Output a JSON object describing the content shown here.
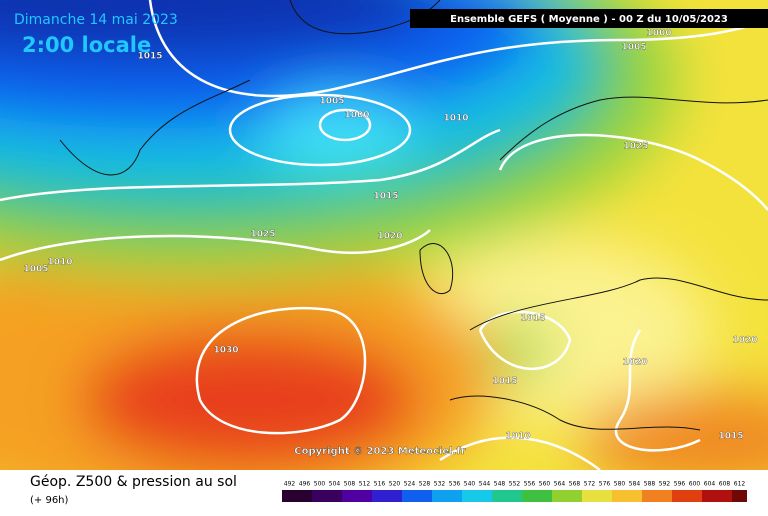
{
  "header": {
    "date": "Dimanche 14 mai 2023",
    "time": "2:00 locale",
    "model": "Ensemble GEFS  ( Moyenne )  - 00 Z du 10/05/2023"
  },
  "isobar_labels": [
    "1015",
    "1005",
    "1000",
    "1010",
    "1015",
    "1025",
    "1020",
    "1030",
    "1005",
    "1010",
    "1025",
    "1015",
    "1015",
    "1020",
    "1010",
    "1015",
    "1020",
    "1000",
    "1005"
  ],
  "copyright": "Copyright © 2023 Meteociel.fr",
  "footer": {
    "title": "Géop. Z500 & pression au sol",
    "lead": "(+ 96h)"
  },
  "colorbar": [
    "492",
    "496",
    "500",
    "504",
    "508",
    "512",
    "516",
    "520",
    "524",
    "528",
    "532",
    "536",
    "540",
    "544",
    "548",
    "552",
    "556",
    "560",
    "564",
    "568",
    "572",
    "576",
    "580",
    "584",
    "588",
    "592",
    "596",
    "600",
    "604",
    "608",
    "612"
  ]
}
